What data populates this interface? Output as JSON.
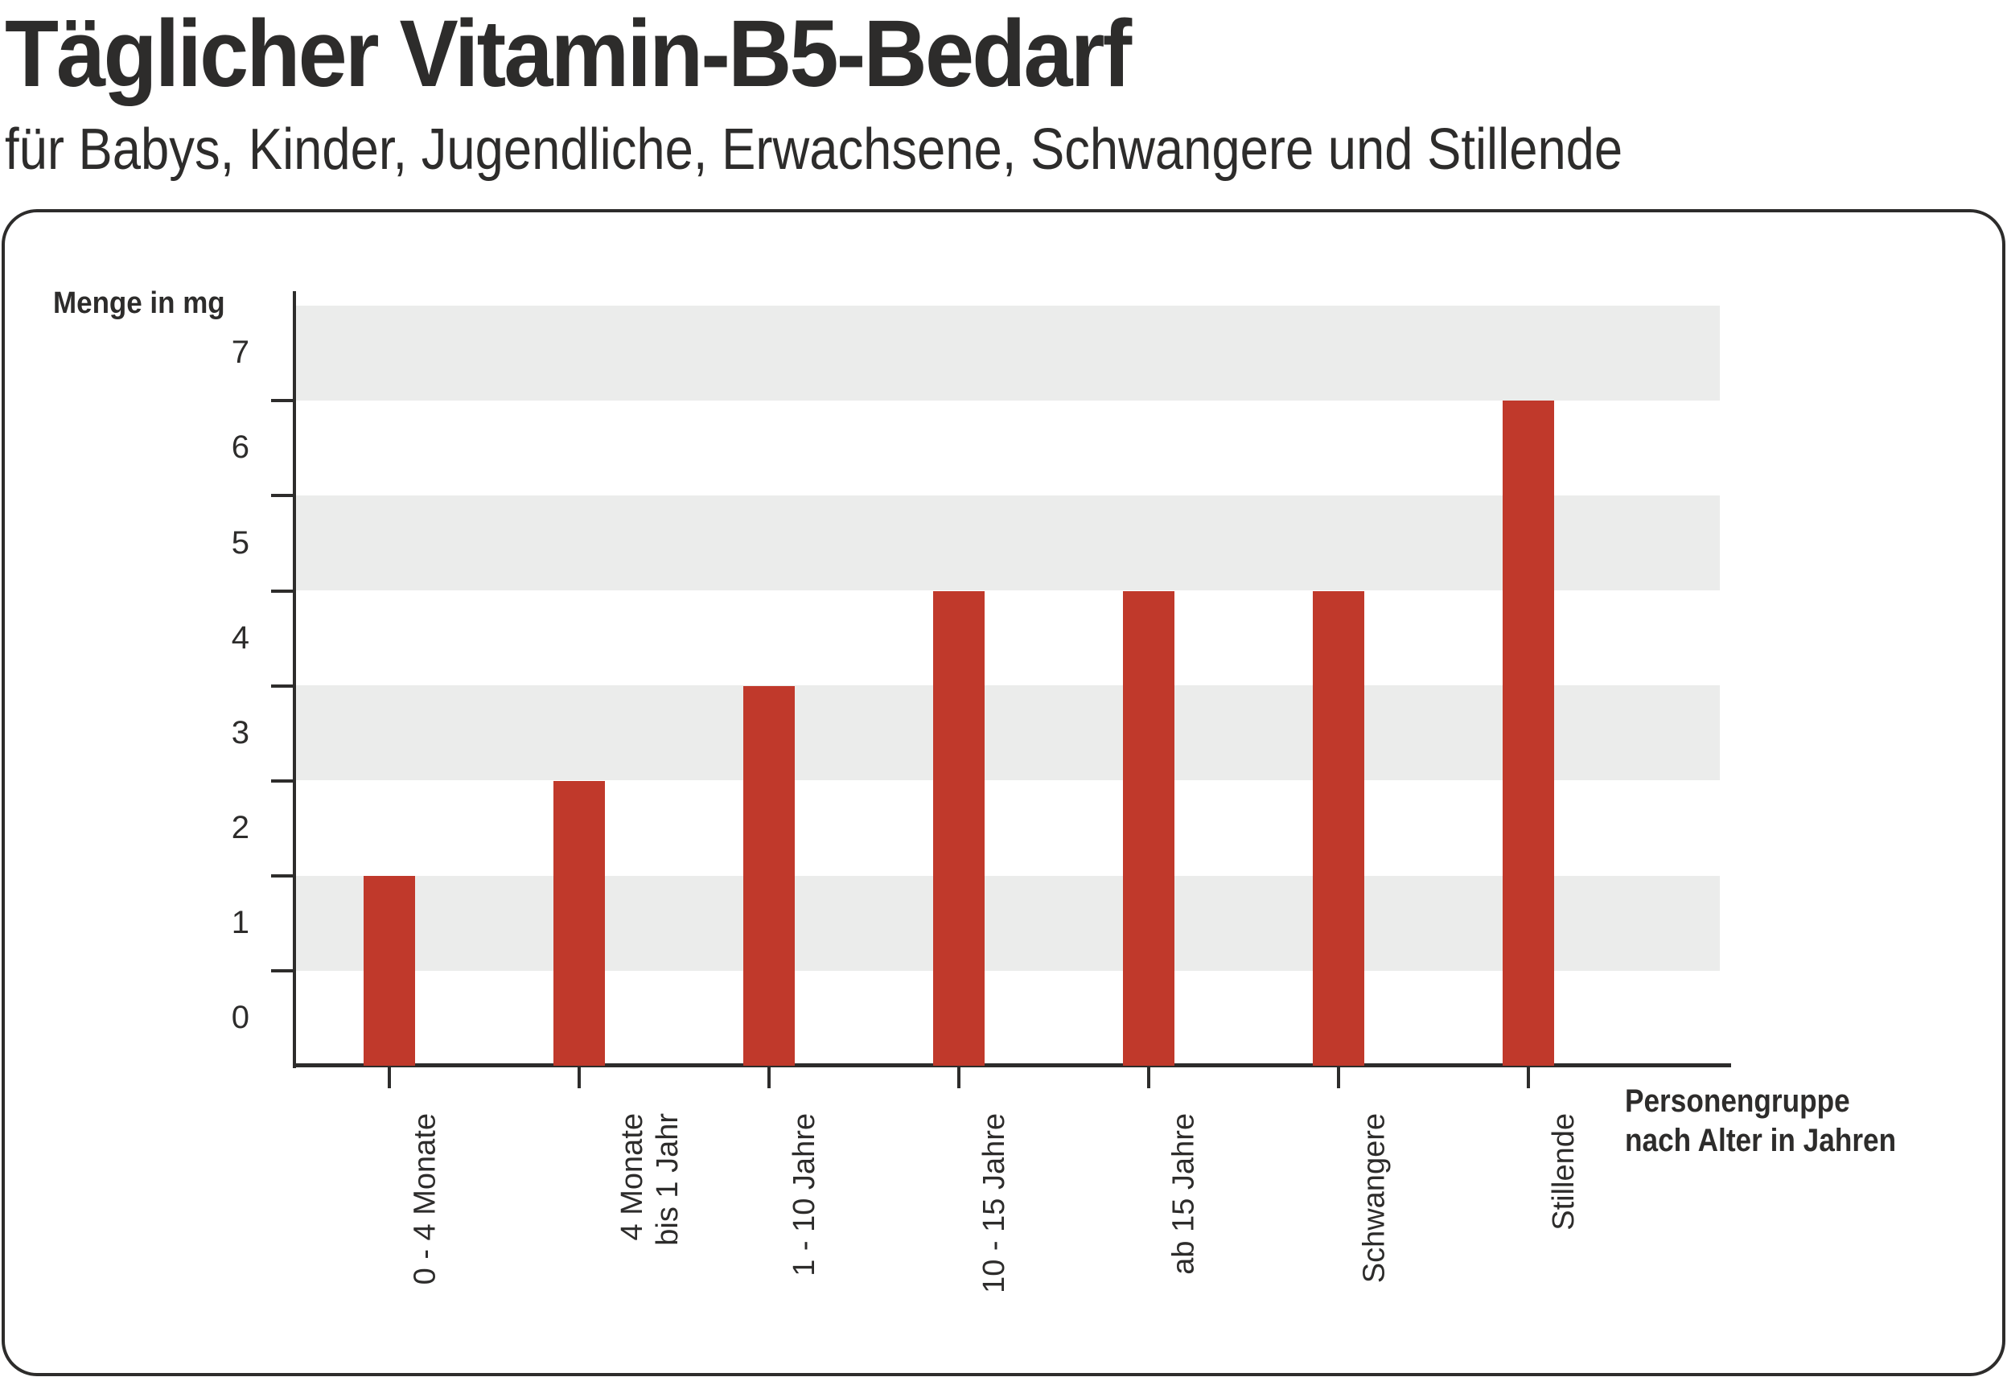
{
  "header": {
    "title": "Täglicher Vitamin-B5-Bedarf",
    "subtitle": "für Babys, Kinder, Jugendliche, Erwachsene, Schwangere und Stillende"
  },
  "axes": {
    "y_label": "Menge in mg",
    "x_label_line1": "Personengruppe",
    "x_label_line2": "nach Alter in Jahren",
    "y_ticks": [
      "0",
      "1",
      "2",
      "3",
      "4",
      "5",
      "6",
      "7"
    ]
  },
  "colors": {
    "bar": "#c0392b",
    "band": "#ebeceb",
    "text": "#2d2c2b"
  },
  "chart_data": {
    "type": "bar",
    "title": "Täglicher Vitamin-B5-Bedarf",
    "subtitle": "für Babys, Kinder, Jugendliche, Erwachsene, Schwangere und Stillende",
    "xlabel": "Personengruppe nach Alter in Jahren",
    "ylabel": "Menge in mg",
    "categories": [
      "0 - 4 Monate",
      "4 Monate bis 1 Jahr",
      "1 - 10 Jahre",
      "10 - 15 Jahre",
      "ab 15 Jahre",
      "Schwangere",
      "Stillende"
    ],
    "values": [
      2,
      3,
      4,
      5,
      5,
      5,
      7
    ],
    "ylim": [
      0,
      8
    ],
    "yticks": [
      0,
      1,
      2,
      3,
      4,
      5,
      6,
      7
    ],
    "grid": "alternating horizontal bands",
    "legend": null
  },
  "categories": [
    {
      "label": "0 - 4 Monate",
      "value": 2
    },
    {
      "label": "4 Monate\nbis 1 Jahr",
      "value": 3
    },
    {
      "label": "1 - 10 Jahre",
      "value": 4
    },
    {
      "label": "10 - 15 Jahre",
      "value": 5
    },
    {
      "label": "ab 15 Jahre",
      "value": 5
    },
    {
      "label": "Schwangere",
      "value": 5
    },
    {
      "label": "Stillende",
      "value": 7
    }
  ]
}
